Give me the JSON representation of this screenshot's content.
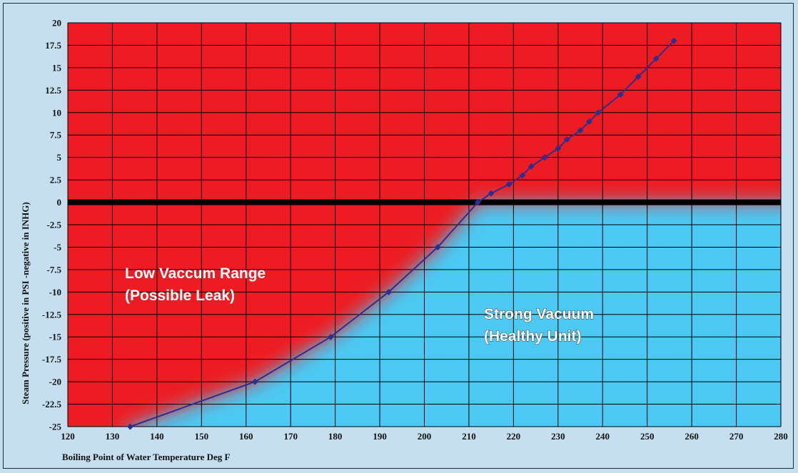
{
  "chart_data": {
    "type": "line",
    "title": "",
    "xlabel": "Boiling Point of Water Temperature Deg F",
    "ylabel": "Steam Pressure (positive in PSI -negative in INHG)",
    "xlim": [
      120,
      280
    ],
    "ylim": [
      -25,
      20
    ],
    "xticks": [
      120,
      130,
      140,
      150,
      160,
      170,
      180,
      190,
      200,
      210,
      220,
      230,
      240,
      250,
      260,
      270,
      280
    ],
    "yticks": [
      20,
      17.5,
      15,
      12.5,
      10,
      7.5,
      5,
      2.5,
      0,
      -2.5,
      -5,
      -7.5,
      -10,
      -12.5,
      -15,
      -17.5,
      -20,
      -22.5,
      -25
    ],
    "grid": true,
    "series": [
      {
        "x": [
          134,
          162,
          179,
          192,
          203,
          212,
          215,
          219,
          222,
          224,
          227,
          230,
          232,
          235,
          237,
          239,
          244,
          248,
          252,
          256
        ],
        "y": [
          -25,
          -20,
          -15,
          -10,
          -5,
          0,
          1,
          2,
          3,
          4,
          5,
          6,
          7,
          8,
          9,
          10,
          12,
          14,
          16,
          18
        ]
      }
    ],
    "regions": [
      {
        "label_line1": "Low Vaccum Range",
        "label_line2": "(Possible Leak)"
      },
      {
        "label_line1": "Strong Vacuum",
        "label_line2": "(Healthy Unit)"
      }
    ],
    "colors": {
      "danger": "#ed1c24",
      "healthy": "#4cc9f2",
      "line": "#2e2f8c",
      "zero_line": "#000000",
      "grid": "#000000",
      "background": "#c5dff0"
    }
  }
}
